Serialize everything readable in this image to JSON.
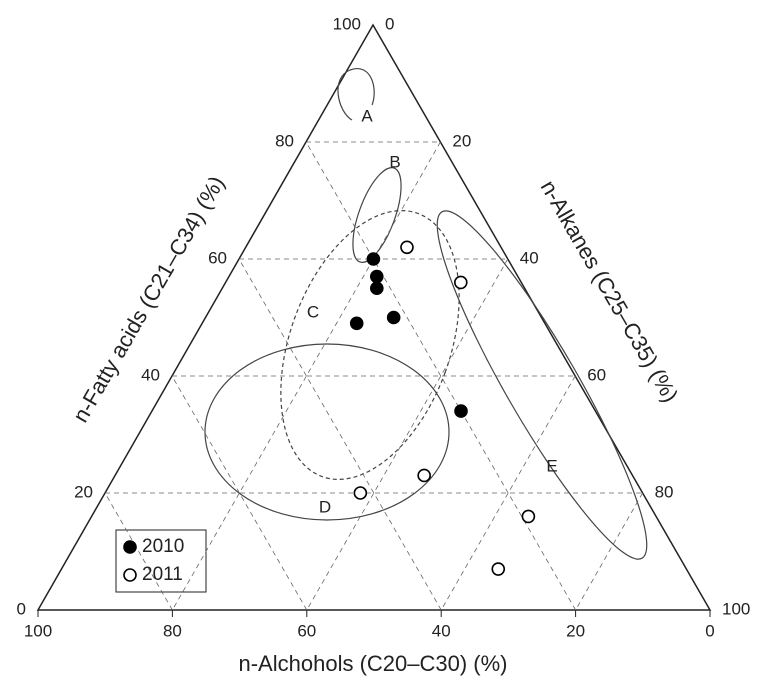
{
  "chart_data": {
    "type": "ternary",
    "left_axis_label": "n-Fatty acids (C21–C34) (%)",
    "right_axis_label": "n-Alkanes (C25–C35) (%)",
    "bottom_axis_label": "n-Alchohols (C20–C30) (%)",
    "ticks": [
      0,
      20,
      40,
      60,
      80,
      100
    ],
    "grid": true,
    "region_labels": [
      "A",
      "B",
      "C",
      "D",
      "E"
    ],
    "series": [
      {
        "name": "2010",
        "color": "#000000",
        "filled": true,
        "fatty_acids": [
          60,
          57,
          55,
          49,
          50,
          34
        ],
        "alkanes": [
          20,
          22,
          23,
          23,
          28,
          46
        ],
        "alcohols": [
          20,
          21,
          22,
          28,
          22,
          20
        ]
      },
      {
        "name": "2011",
        "color": "#000000",
        "filled": false,
        "fatty_acids": [
          62,
          56,
          23,
          20,
          16,
          7
        ],
        "alkanes": [
          24,
          35,
          46,
          38,
          65,
          65
        ],
        "alcohols": [
          14,
          9,
          31,
          42,
          19,
          28
        ]
      }
    ]
  }
}
